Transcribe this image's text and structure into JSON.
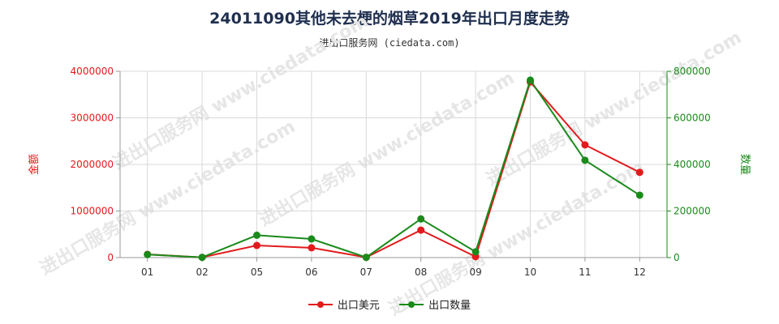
{
  "title": "24011090其他未去梗的烟草2019年出口月度走势",
  "subtitle": "进出口服务网 (ciedata.com)",
  "watermark": "进出口服务网 www.ciedata.com",
  "chart_data": {
    "type": "line",
    "categories": [
      "01",
      "02",
      "05",
      "06",
      "07",
      "08",
      "09",
      "10",
      "11",
      "12"
    ],
    "ylabel_left": "金额",
    "ylabel_right": "数量",
    "ylim_left": [
      0,
      4000000
    ],
    "ylim_right": [
      0,
      800000
    ],
    "yticks_left": [
      "0",
      "1000000",
      "2000000",
      "3000000",
      "4000000"
    ],
    "yticks_right": [
      "0",
      "200000",
      "400000",
      "600000",
      "800000"
    ],
    "grid": true,
    "legend_position": "bottom",
    "series": [
      {
        "name": "出口美元",
        "axis": "left",
        "color": "#e31a1c",
        "values": [
          70000,
          5000,
          260000,
          210000,
          5000,
          590000,
          20000,
          3770000,
          2420000,
          1830000
        ]
      },
      {
        "name": "出口数量",
        "axis": "right",
        "color": "#1a8a1a",
        "values": [
          13000,
          1000,
          96000,
          80000,
          1000,
          166000,
          25000,
          762000,
          418000,
          268000
        ]
      }
    ]
  }
}
